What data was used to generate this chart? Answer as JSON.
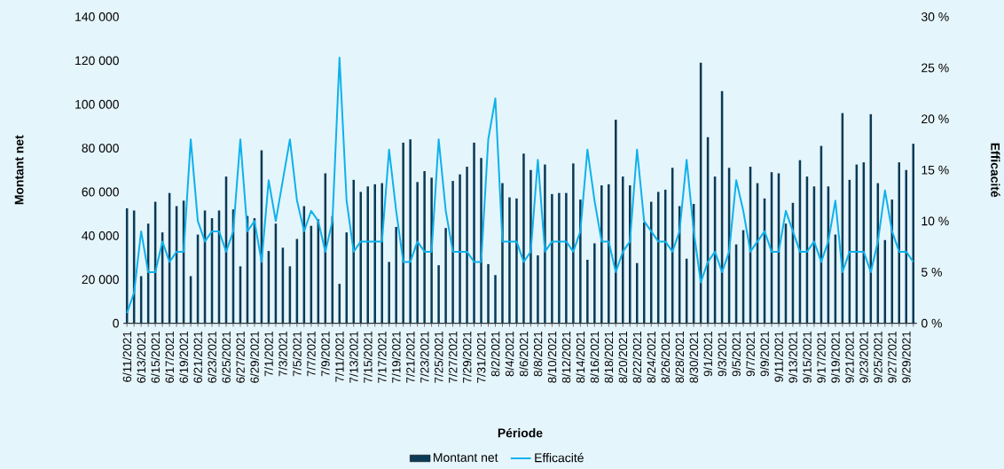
{
  "chart_data": {
    "type": "bar",
    "xlabel": "Période",
    "ylabel": "Montant net",
    "y2label": "Efficacité",
    "categories": [
      "6/11/2021",
      null,
      "6/13/2021",
      null,
      "6/15/2021",
      null,
      "6/17/2021",
      null,
      "6/19/2021",
      null,
      "6/21/2021",
      null,
      "6/23/2021",
      null,
      "6/25/2021",
      null,
      "6/27/2021",
      null,
      "6/29/2021",
      null,
      "7/1/2021",
      null,
      "7/3/2021",
      null,
      "7/5/2021",
      null,
      "7/7/2021",
      null,
      "7/9/2021",
      null,
      "7/11/2021",
      null,
      "7/13/2021",
      null,
      "7/15/2021",
      null,
      "7/17/2021",
      null,
      "7/19/2021",
      null,
      "7/21/2021",
      null,
      "7/23/2021",
      null,
      "7/25/2021",
      null,
      "7/27/2021",
      null,
      "7/29/2021",
      null,
      "7/31/2021",
      null,
      "8/2/2021",
      null,
      "8/4/2021",
      null,
      "8/6/2021",
      null,
      "8/8/2021",
      null,
      "8/10/2021",
      null,
      "8/12/2021",
      null,
      "8/14/2021",
      null,
      "8/16/2021",
      null,
      "8/18/2021",
      null,
      "8/20/2021",
      null,
      "8/22/2021",
      null,
      "8/24/2021",
      null,
      "8/26/2021",
      null,
      "8/28/2021",
      null,
      "8/30/2021",
      null,
      "9/1/2021",
      null,
      "9/3/2021",
      null,
      "9/5/2021",
      null,
      "9/7/2021",
      null,
      "9/9/2021",
      null,
      "9/11/2021",
      null,
      "9/13/2021",
      null,
      "9/15/2021",
      null,
      "9/17/2021",
      null,
      "9/19/2021",
      null,
      "9/21/2021",
      null,
      "9/23/2021",
      null,
      "9/25/2021",
      null,
      "9/27/2021",
      null,
      "9/29/2021",
      null
    ],
    "series": [
      {
        "name": "Montant net",
        "color": "#0b3a55",
        "values": [
          52500,
          51500,
          21500,
          45500,
          55500,
          41500,
          59500,
          53500,
          56000,
          21500,
          40500,
          51500,
          48000,
          51500,
          67000,
          52000,
          26000,
          49000,
          48000,
          79000,
          33000,
          45500,
          34500,
          26000,
          38500,
          53500,
          44500,
          47500,
          68500,
          49000,
          18000,
          41500,
          65500,
          60000,
          62500,
          63500,
          64000,
          28000,
          44000,
          82500,
          84000,
          64500,
          69500,
          66500,
          26500,
          43500,
          65000,
          68000,
          71500,
          82500,
          75500,
          27000,
          22000,
          64000,
          57500,
          57000,
          77500,
          70000,
          31000,
          72500,
          59000,
          59500,
          59500,
          73000,
          56500,
          29000,
          36500,
          63000,
          63500,
          93000,
          67000,
          63000,
          27500,
          46000,
          55500,
          60000,
          61000,
          71000,
          53500,
          29500,
          54500,
          119000,
          85000,
          67000,
          106000,
          71000,
          36000,
          42500,
          71500,
          64000,
          57000,
          69000,
          68500,
          45500,
          55000,
          74500,
          67000,
          62500,
          81000,
          62500,
          40500,
          96000,
          65500,
          72500,
          73500,
          95500,
          64000,
          38000,
          56500,
          73500,
          70000,
          82000
        ]
      },
      {
        "name": "Efficacité",
        "type": "line",
        "axis": "y2",
        "color": "#0db1ec",
        "values": [
          1,
          3,
          9,
          5,
          5,
          8,
          6,
          7,
          7,
          18,
          10,
          8,
          9,
          9,
          7,
          9,
          18,
          9,
          10,
          6,
          14,
          10,
          14,
          18,
          12,
          9,
          11,
          10,
          7,
          10,
          26,
          12,
          7,
          8,
          8,
          8,
          8,
          17,
          11,
          6,
          6,
          8,
          7,
          7,
          18,
          11,
          7,
          7,
          7,
          6,
          6,
          18,
          22,
          8,
          8,
          8,
          6,
          7,
          16,
          7,
          8,
          8,
          8,
          7,
          9,
          17,
          12,
          8,
          8,
          5,
          7,
          8,
          17,
          10,
          9,
          8,
          8,
          7,
          9,
          16,
          9,
          4,
          6,
          7,
          5,
          7,
          14,
          11,
          7,
          8,
          9,
          7,
          7,
          11,
          9,
          7,
          7,
          8,
          6,
          8,
          12,
          5,
          7,
          7,
          7,
          5,
          8,
          13,
          9,
          7,
          7,
          6
        ]
      }
    ],
    "ylim": [
      0,
      140000
    ],
    "yticks": [
      0,
      {
        "value": 20000,
        "label": "20 000"
      },
      {
        "value": 40000,
        "label": "40 000"
      },
      {
        "value": 60000,
        "label": "60 000"
      },
      {
        "value": 80000,
        "label": "80 000"
      },
      {
        "value": 100000,
        "label": "100 000"
      },
      {
        "value": 120000,
        "label": "120 000"
      },
      {
        "value": 140000,
        "label": "140 000"
      }
    ],
    "y2lim": [
      0,
      30
    ],
    "y2ticks": [
      {
        "value": 0,
        "label": "0 %"
      },
      {
        "value": 5,
        "label": "5 %"
      },
      {
        "value": 10,
        "label": "10 %"
      },
      {
        "value": 15,
        "label": "15 %"
      },
      {
        "value": 20,
        "label": "20 %"
      },
      {
        "value": 25,
        "label": "25 %"
      },
      {
        "value": 30,
        "label": "30 %"
      }
    ],
    "legend": "bottom"
  }
}
